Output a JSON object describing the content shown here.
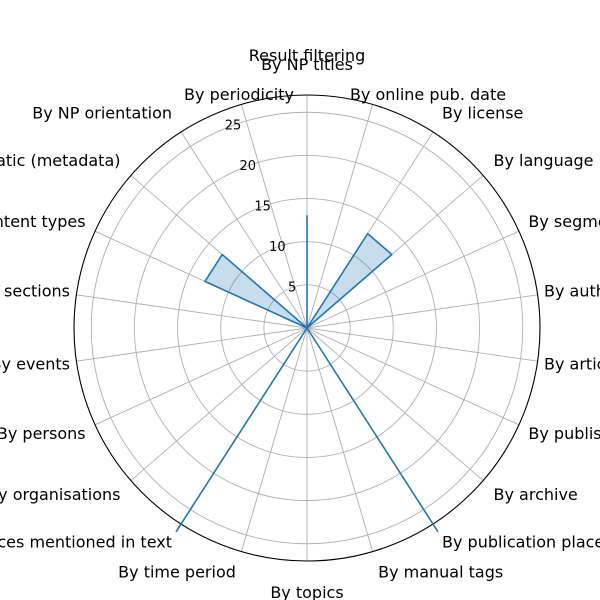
{
  "chart_data": {
    "type": "radar",
    "title": "Result filtering",
    "categories": [
      "By NP titles",
      "By online pub. date",
      "By license",
      "By language",
      "By segmentation level",
      "By authors",
      "By article length",
      "By publisher",
      "By archive",
      "By publication place",
      "By manual tags",
      "By topics",
      "By time period",
      "By places mentioned in text",
      "By organisations",
      "By persons",
      "By events",
      "By sections",
      "By content types",
      "By newspaper thematic (metadata)",
      "By NP orientation",
      "By periodicity"
    ],
    "series": [
      {
        "values": [
          13,
          0,
          13,
          13,
          0,
          0,
          0,
          0,
          0,
          28,
          0,
          0,
          0,
          28,
          0,
          0,
          0,
          0,
          13,
          13,
          0,
          0
        ]
      }
    ],
    "rticks": [
      5,
      10,
      15,
      20,
      25
    ],
    "rlim": [
      0,
      27
    ],
    "grid": true,
    "color": "#1f77b4"
  }
}
